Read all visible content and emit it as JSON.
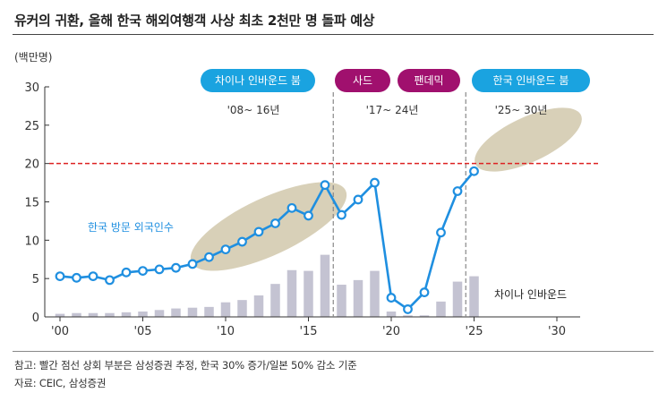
{
  "title": "유커의 귀환, 올해 한국 해외여행객 사상 최초 2천만 명 돌파 예상",
  "unit": "(백만명)",
  "notes": {
    "note1": "참고: 빨간 점선 상회 부분은 삼성증권 추정, 한국 30% 증가/일본 50% 감소 기준",
    "note2": "자료: CEIC, 삼성증권"
  },
  "pills": [
    {
      "label": "차이나 인바운드 붐",
      "color": "#1aa3e0"
    },
    {
      "label": "사드",
      "color": "#a0106e"
    },
    {
      "label": "팬데믹",
      "color": "#a0106e"
    },
    {
      "label": "한국 인바운드 붐",
      "color": "#1aa3e0"
    }
  ],
  "periods": [
    "'08~ 16년",
    "'17~ 24년",
    "'25~ 30년"
  ],
  "colors": {
    "line": "#1f8fe0",
    "bar": "#c4c3d2",
    "threshold": "#dd2222",
    "ellipse": "#d8d0b8",
    "divider": "#888888"
  },
  "chart_data": {
    "type": "bar+line",
    "x_ticks": [
      "'00",
      "'05",
      "'10",
      "'15",
      "'20",
      "'25",
      "'30"
    ],
    "x_tick_years": [
      2000,
      2005,
      2010,
      2015,
      2020,
      2025,
      2030
    ],
    "y_ticks": [
      "0",
      "5",
      "10",
      "15",
      "20",
      "25",
      "30"
    ],
    "ylim": [
      0,
      30
    ],
    "xlim": [
      2000,
      2030
    ],
    "threshold": 20,
    "dividers": [
      2016.5,
      2024.5
    ],
    "line_series": {
      "name": "한국 방문 외국인수",
      "x": [
        2000,
        2001,
        2002,
        2003,
        2004,
        2005,
        2006,
        2007,
        2008,
        2009,
        2010,
        2011,
        2012,
        2013,
        2014,
        2015,
        2016,
        2017,
        2018,
        2019,
        2020,
        2021,
        2022,
        2023,
        2024,
        2025
      ],
      "y": [
        5.3,
        5.1,
        5.3,
        4.8,
        5.8,
        6.0,
        6.2,
        6.4,
        6.9,
        7.8,
        8.8,
        9.8,
        11.1,
        12.2,
        14.2,
        13.2,
        17.2,
        13.3,
        15.3,
        17.5,
        2.5,
        1.0,
        3.2,
        11.0,
        16.4,
        19.0
      ]
    },
    "bar_series": {
      "name": "차이나 인바운드",
      "x": [
        2000,
        2001,
        2002,
        2003,
        2004,
        2005,
        2006,
        2007,
        2008,
        2009,
        2010,
        2011,
        2012,
        2013,
        2014,
        2015,
        2016,
        2017,
        2018,
        2019,
        2020,
        2021,
        2022,
        2023,
        2024,
        2025
      ],
      "y": [
        0.4,
        0.5,
        0.5,
        0.5,
        0.6,
        0.7,
        0.9,
        1.1,
        1.2,
        1.3,
        1.9,
        2.2,
        2.8,
        4.3,
        6.1,
        6.0,
        8.1,
        4.2,
        4.8,
        6.0,
        0.7,
        0.2,
        0.2,
        2.0,
        4.6,
        5.3
      ]
    }
  }
}
